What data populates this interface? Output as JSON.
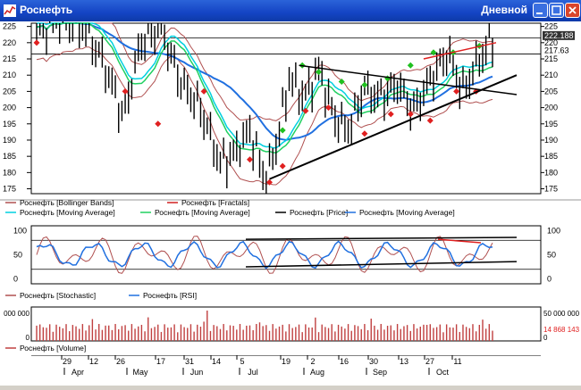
{
  "window": {
    "title": "Роснефть",
    "timeframe": "Дневной"
  },
  "colors": {
    "bollinger": "#b05050",
    "fractals_line": "#d02020",
    "ma_fast": "#00d0e0",
    "ma_mid": "#20d060",
    "price": "#000000",
    "ma_slow": "#2070e0",
    "stochastic": "#b05050",
    "rsi": "#2070e0",
    "volume": "#c04040",
    "fractal_up": "#20c020",
    "fractal_down": "#e02020",
    "highlight_red": "#e02020"
  },
  "main_chart": {
    "y_ticks": [
      "225",
      "220",
      "215",
      "210",
      "205",
      "200",
      "195",
      "190",
      "185",
      "180",
      "175"
    ],
    "y_tick_values": [
      225,
      220,
      215,
      210,
      205,
      200,
      195,
      190,
      185,
      180,
      175
    ],
    "ylim": [
      173.5,
      226
    ],
    "labels_right": {
      "last_price": "222.188",
      "ma_value": "217.63",
      "ma_value_num": 217.63,
      "last_price_num": 222.188
    },
    "legend": [
      {
        "label": "Роснефть [Bollinger Bands]",
        "color": "#b05050"
      },
      {
        "label": "Роснефть [Fractals]",
        "color": "#d02020"
      },
      {
        "label": "Роснефть [Moving Average]",
        "color": "#00d0e0"
      },
      {
        "label": "Роснефть [Moving Average]",
        "color": "#20d060"
      },
      {
        "label": "Роснефть [Price]",
        "color": "#000000"
      },
      {
        "label": "Роснефть [Moving Average]",
        "color": "#2070e0"
      }
    ]
  },
  "oscillator_chart": {
    "y_ticks": [
      "100",
      "50",
      "0"
    ],
    "y_tick_values": [
      100,
      50,
      0
    ],
    "ylim": [
      -10,
      110
    ],
    "legend": [
      {
        "label": "Роснефть [Stochastic]",
        "color": "#b05050"
      },
      {
        "label": "Роснефть [RSI]",
        "color": "#2070e0"
      }
    ]
  },
  "volume_chart": {
    "left_tick": "000 000",
    "left_tick_zero": "0",
    "right_tick": "50 000 000",
    "right_tick_zero": "0",
    "last_volume": "14 868 143",
    "legend": [
      {
        "label": "Роснефть [Volume]",
        "color": "#c04040"
      }
    ]
  },
  "x_axis": {
    "day_ticks": [
      "29",
      "12",
      "26",
      "17",
      "31",
      "14",
      "5",
      "19",
      "2",
      "16",
      "30",
      "13",
      "27",
      "11"
    ],
    "month_ticks": [
      "Apr",
      "May",
      "Jun",
      "Jul",
      "Aug",
      "Sep",
      "Oct"
    ]
  }
}
